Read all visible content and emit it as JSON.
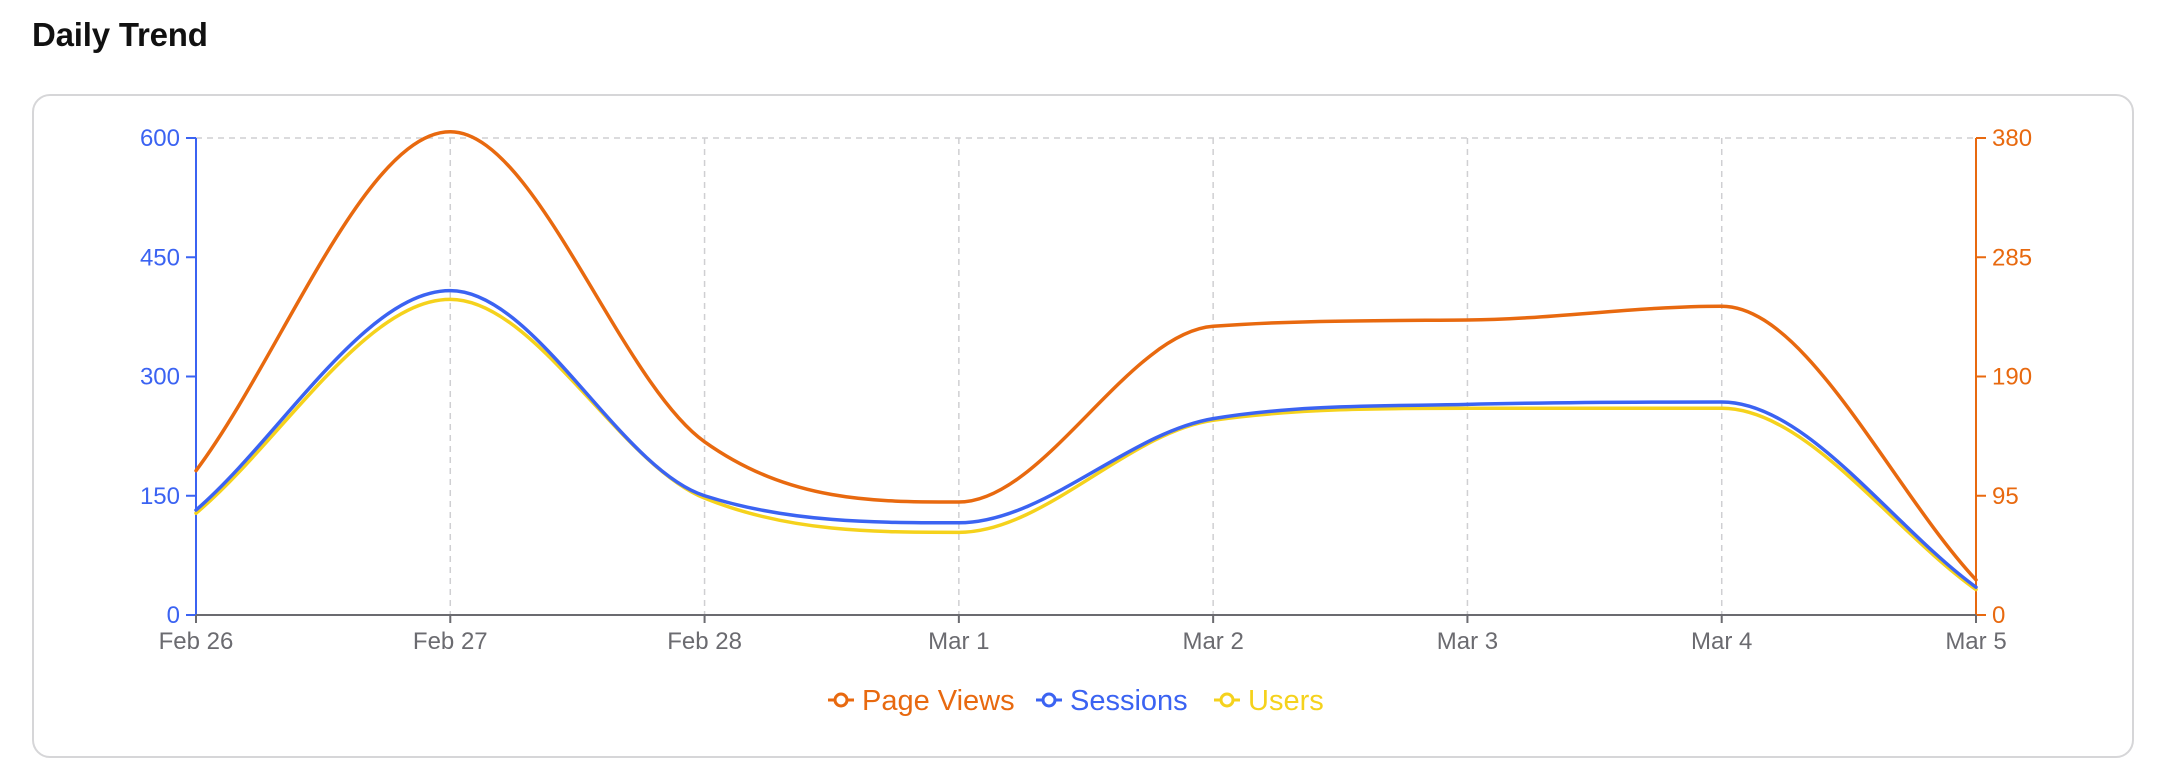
{
  "header": {
    "title": "Daily Trend"
  },
  "colors": {
    "page_views": "#e8690f",
    "sessions": "#3b63f2",
    "users": "#f5d21c",
    "x_axis_text": "#6b6b70",
    "grid": "#cfcfd2",
    "axis": "#6b6b70"
  },
  "chart_data": {
    "type": "line",
    "title": "",
    "x": [
      "Feb 26",
      "Feb 27",
      "Feb 28",
      "Mar 1",
      "Mar 2",
      "Mar 3",
      "Mar 4",
      "Mar 5"
    ],
    "left_axis": {
      "label": "",
      "range": [
        0,
        600
      ],
      "ticks": [
        0,
        150,
        300,
        450,
        600
      ]
    },
    "right_axis": {
      "label": "",
      "range": [
        0,
        380
      ],
      "ticks": [
        0,
        95,
        190,
        285,
        380
      ]
    },
    "series": [
      {
        "name": "Page Views",
        "axis": "right",
        "color_key": "page_views",
        "values": [
          115,
          385,
          138,
          90,
          230,
          235,
          246,
          28
        ]
      },
      {
        "name": "Sessions",
        "axis": "left",
        "color_key": "sessions",
        "values": [
          132,
          408,
          150,
          116,
          247,
          265,
          268,
          35
        ]
      },
      {
        "name": "Users",
        "axis": "left",
        "color_key": "users",
        "values": [
          128,
          397,
          147,
          104,
          245,
          260,
          260,
          32
        ]
      }
    ],
    "grid": {
      "vertical": true,
      "horizontal_top_only": true,
      "style": "dashed"
    },
    "legend": {
      "position": "bottom-center"
    },
    "curve": "smooth"
  }
}
